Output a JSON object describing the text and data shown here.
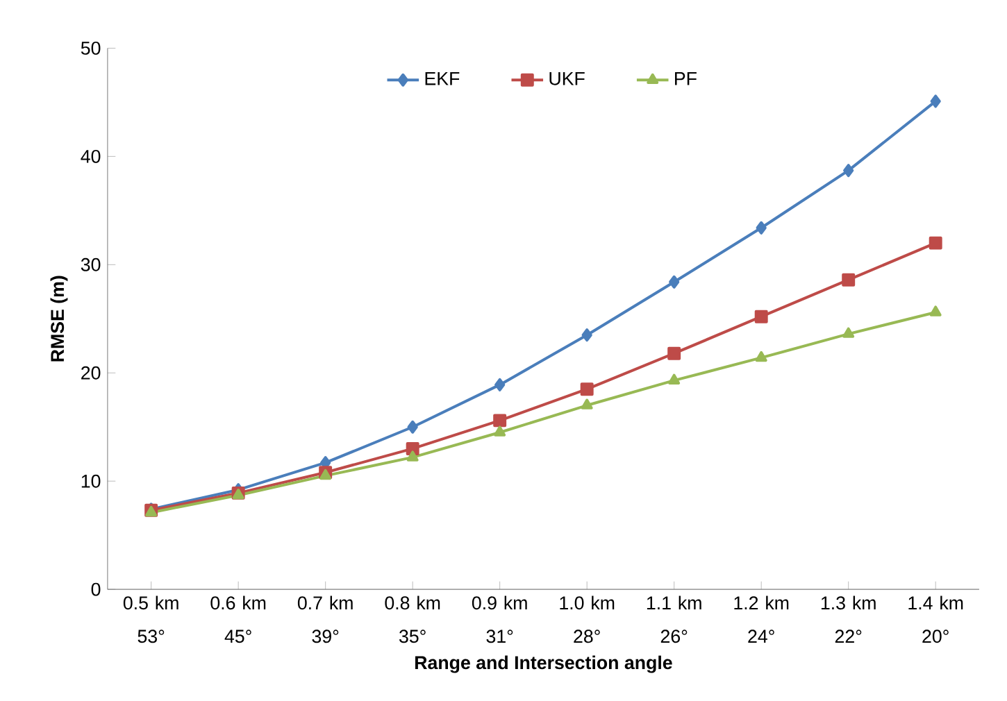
{
  "chart_data": {
    "type": "line",
    "xlabel": "Range and Intersection angle",
    "ylabel": "RMSE (m)",
    "categories": [
      "0.5 km 53°",
      "0.6 km 45°",
      "0.7 km 39°",
      "0.8 km 35°",
      "0.9 km 31°",
      "1.0 km 28°",
      "1.1 km 26°",
      "1.2 km 24°",
      "1.3 km 22°",
      "1.4 km 20°"
    ],
    "series": [
      {
        "name": "EKF",
        "color": "#4a7ebb",
        "marker": "diamond",
        "values": [
          7.4,
          9.2,
          11.7,
          15.0,
          18.9,
          23.5,
          28.4,
          33.4,
          38.7,
          45.1
        ]
      },
      {
        "name": "UKF",
        "color": "#be4b48",
        "marker": "square",
        "values": [
          7.3,
          8.9,
          10.8,
          13.0,
          15.6,
          18.5,
          21.8,
          25.2,
          28.6,
          32.0
        ]
      },
      {
        "name": "PF",
        "color": "#98b954",
        "marker": "triangle",
        "values": [
          7.1,
          8.7,
          10.5,
          12.2,
          14.5,
          17.0,
          19.3,
          21.4,
          23.6,
          25.6
        ]
      }
    ],
    "ylim": [
      0,
      50
    ],
    "yticks": [
      0,
      10,
      20,
      30,
      40,
      50
    ],
    "legend": "top",
    "line_style": "solid"
  }
}
